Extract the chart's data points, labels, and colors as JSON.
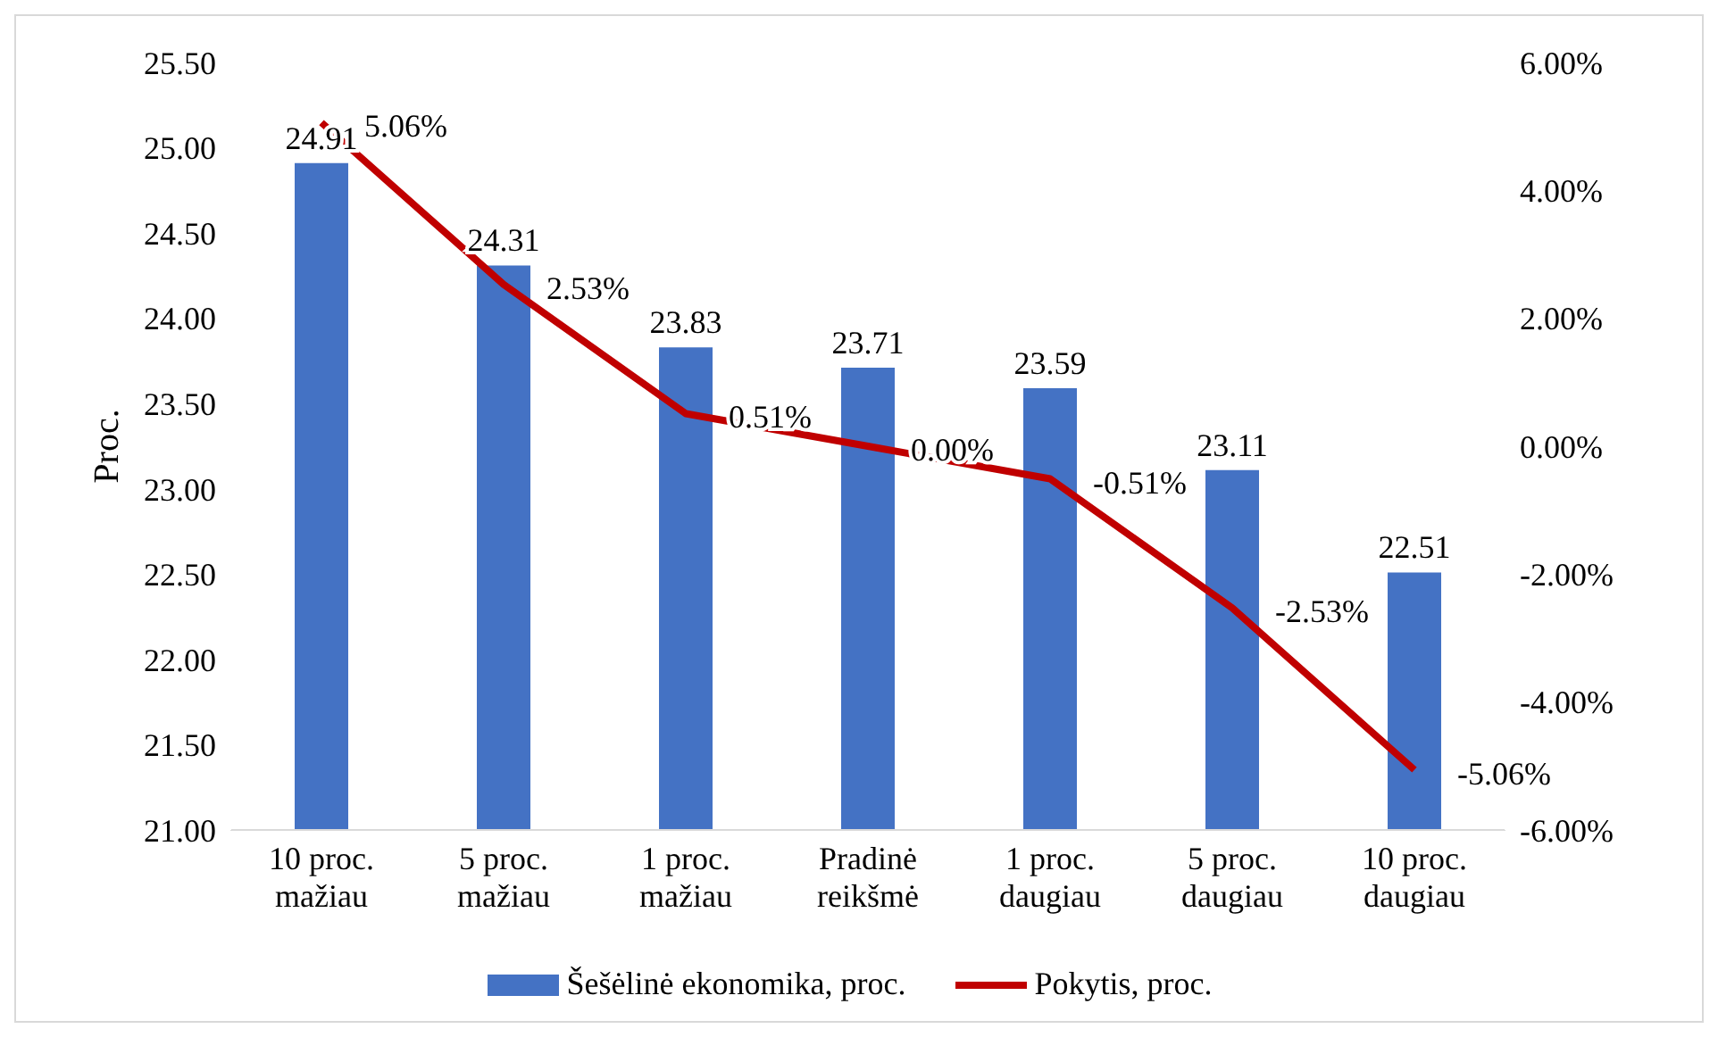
{
  "chart_data": {
    "type": "bar",
    "ylabel": "Proc.",
    "categories": [
      "10 proc.\nmažiau",
      "5 proc.\nmažiau",
      "1 proc.\nmažiau",
      "Pradinė\nreikšmė",
      "1 proc.\ndaugiau",
      "5 proc.\ndaugiau",
      "10 proc.\ndaugiau"
    ],
    "series": [
      {
        "name": "Šešėlinė ekonomika, proc.",
        "type": "bar",
        "color": "#4472c4",
        "values": [
          24.91,
          24.31,
          23.83,
          23.71,
          23.59,
          23.11,
          22.51
        ],
        "value_labels": [
          "24.91",
          "24.31",
          "23.83",
          "23.71",
          "23.59",
          "23.11",
          "22.51"
        ]
      },
      {
        "name": "Pokytis, proc.",
        "type": "line",
        "axis": "y2",
        "color": "#c00000",
        "values": [
          5.06,
          2.53,
          0.51,
          0.0,
          -0.51,
          -2.53,
          -5.06
        ],
        "value_labels": [
          "5.06%",
          "2.53%",
          "0.51%",
          "0.00%",
          "-0.51%",
          "-2.53%",
          "-5.06%"
        ]
      }
    ],
    "ylim": [
      21,
      25.5
    ],
    "yticks": [
      {
        "value": 21,
        "label": "21.00"
      },
      {
        "value": 21.5,
        "label": "21.50"
      },
      {
        "value": 22,
        "label": "22.00"
      },
      {
        "value": 22.5,
        "label": "22.50"
      },
      {
        "value": 23,
        "label": "23.00"
      },
      {
        "value": 23.5,
        "label": "23.50"
      },
      {
        "value": 24,
        "label": "24.00"
      },
      {
        "value": 24.5,
        "label": "24.50"
      },
      {
        "value": 25,
        "label": "25.00"
      },
      {
        "value": 25.5,
        "label": "25.50"
      }
    ],
    "y2lim": [
      -6,
      6
    ],
    "y2ticks": [
      {
        "value": -6,
        "label": "-6.00%"
      },
      {
        "value": -4,
        "label": "-4.00%"
      },
      {
        "value": -2,
        "label": "-2.00%"
      },
      {
        "value": 0,
        "label": "0.00%"
      },
      {
        "value": 2,
        "label": "2.00%"
      },
      {
        "value": 4,
        "label": "4.00%"
      },
      {
        "value": 6,
        "label": "6.00%"
      }
    ],
    "grid": false,
    "legend": "bottom",
    "marker": "none",
    "line_style": "solid"
  }
}
